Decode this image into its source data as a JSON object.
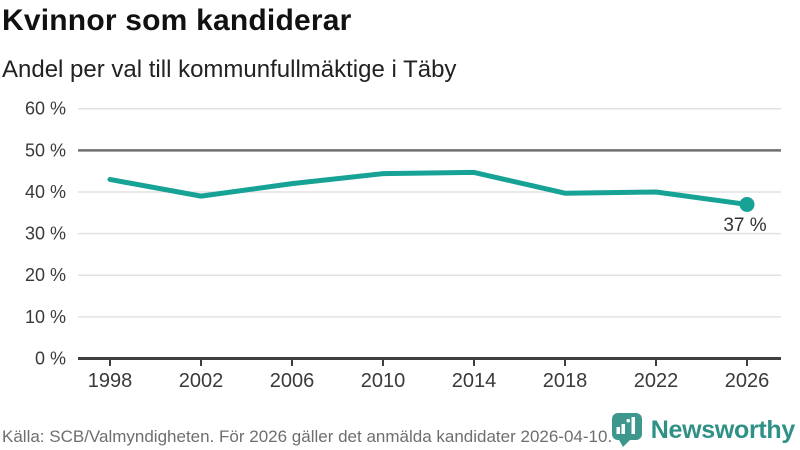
{
  "header": {
    "title": "Kvinnor som kandiderar",
    "subtitle": "Andel per val till kommunfullmäktige i Täby"
  },
  "chart_data": {
    "type": "line",
    "title": "Kvinnor som kandiderar",
    "subtitle": "Andel per val till kommunfullmäktige i Täby",
    "categories": [
      "1998",
      "2002",
      "2006",
      "2010",
      "2014",
      "2018",
      "2022",
      "2026"
    ],
    "values": [
      43,
      39,
      42,
      44.4,
      44.7,
      39.7,
      40,
      37
    ],
    "unit": "%",
    "ylim": [
      0,
      60
    ],
    "ytick_step": 10,
    "yticks": [
      "0 %",
      "10 %",
      "20 %",
      "30 %",
      "40 %",
      "50 %",
      "60 %"
    ],
    "grid": true,
    "legend": "none",
    "reference_line_y": 50,
    "end_point_label": "37 %",
    "colors": {
      "line": "#17a296",
      "marker": "#17a296",
      "grid": "#e2e2e2",
      "reference_line": "#6f6f6f",
      "axis": "#3f3f3f",
      "tick_label": "#3a3a3a",
      "end_label": "#333333"
    }
  },
  "footer": {
    "source": "Källa: SCB/Valmyndigheten. För 2026 gäller det anmälda kandidater 2026-04-10.",
    "brand": "Newsworthy",
    "colors": {
      "wordmark": "#2f9186",
      "bubble": "#3e978c",
      "bars": "#ffffff"
    }
  }
}
